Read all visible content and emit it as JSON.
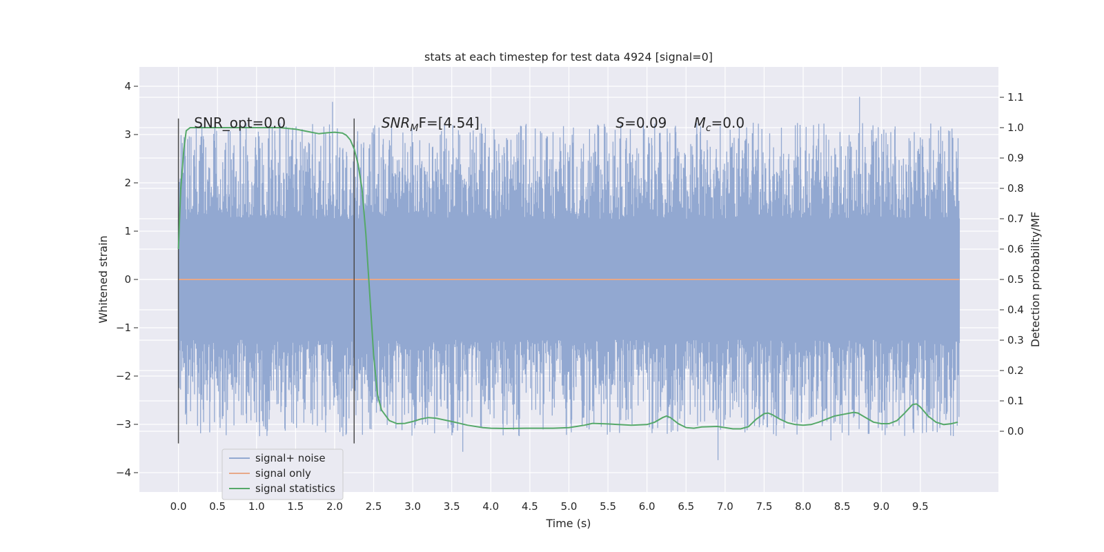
{
  "chart_data": {
    "type": "line",
    "title": "stats at each timestep for test data 4924 [signal=0]",
    "xlabel": "Time (s)",
    "ylabel_left": "Whitened strain",
    "ylabel_right": "Detection probability/MF",
    "xlim": [
      -0.5,
      10.5
    ],
    "ylim_left": [
      -4.4,
      4.4
    ],
    "ylim_right": [
      -0.2,
      1.2
    ],
    "x_ticks": [
      "0.0",
      "0.5",
      "1.0",
      "1.5",
      "2.0",
      "2.5",
      "3.0",
      "3.5",
      "4.0",
      "4.5",
      "5.0",
      "5.5",
      "6.0",
      "6.5",
      "7.0",
      "7.5",
      "8.0",
      "8.5",
      "9.0",
      "9.5"
    ],
    "y_ticks_left": [
      "−4",
      "−3",
      "−2",
      "−1",
      "0",
      "1",
      "2",
      "3",
      "4"
    ],
    "y_ticks_right": [
      "0.0",
      "0.1",
      "0.2",
      "0.3",
      "0.4",
      "0.5",
      "0.6",
      "0.7",
      "0.8",
      "0.9",
      "1.0",
      "1.1"
    ],
    "grid": true,
    "legend_position": "lower-left",
    "series": [
      {
        "name": "signal+ noise",
        "color": "#92a8d1",
        "axis": "left",
        "style": "noise",
        "x_range": [
          0,
          10
        ],
        "typical_abs": 1.25,
        "max_abs": 4.0
      },
      {
        "name": "signal only",
        "color": "#e8a888",
        "axis": "left",
        "values_constant": 0.0,
        "x_range": [
          0,
          10
        ]
      },
      {
        "name": "signal statistics",
        "color": "#55a868",
        "axis": "right",
        "x": [
          0.0,
          0.03,
          0.07,
          0.1,
          0.15,
          0.2,
          0.3,
          0.5,
          1.0,
          1.3,
          1.5,
          1.6,
          1.7,
          1.8,
          1.9,
          2.0,
          2.1,
          2.15,
          2.2,
          2.25,
          2.3,
          2.35,
          2.4,
          2.45,
          2.5,
          2.55,
          2.6,
          2.7,
          2.8,
          2.9,
          3.0,
          3.1,
          3.2,
          3.3,
          3.5,
          3.7,
          3.9,
          4.0,
          4.2,
          4.5,
          4.8,
          5.0,
          5.1,
          5.2,
          5.3,
          5.5,
          5.8,
          6.0,
          6.1,
          6.2,
          6.25,
          6.3,
          6.4,
          6.5,
          6.6,
          6.7,
          6.9,
          7.0,
          7.1,
          7.2,
          7.3,
          7.4,
          7.5,
          7.55,
          7.6,
          7.7,
          7.8,
          7.9,
          8.0,
          8.1,
          8.2,
          8.3,
          8.4,
          8.5,
          8.6,
          8.65,
          8.7,
          8.8,
          8.9,
          9.0,
          9.1,
          9.2,
          9.3,
          9.4,
          9.45,
          9.5,
          9.6,
          9.7,
          9.8,
          9.9,
          9.98
        ],
        "values": [
          0.6,
          0.8,
          0.93,
          0.99,
          1.0,
          1.0,
          1.0,
          1.0,
          1.0,
          1.0,
          0.995,
          0.99,
          0.985,
          0.98,
          0.983,
          0.985,
          0.982,
          0.975,
          0.96,
          0.93,
          0.88,
          0.8,
          0.65,
          0.45,
          0.25,
          0.12,
          0.07,
          0.035,
          0.025,
          0.026,
          0.032,
          0.04,
          0.045,
          0.043,
          0.032,
          0.02,
          0.012,
          0.01,
          0.009,
          0.01,
          0.01,
          0.012,
          0.016,
          0.02,
          0.026,
          0.024,
          0.02,
          0.022,
          0.03,
          0.045,
          0.05,
          0.045,
          0.025,
          0.012,
          0.01,
          0.014,
          0.016,
          0.012,
          0.008,
          0.008,
          0.015,
          0.04,
          0.058,
          0.06,
          0.055,
          0.04,
          0.028,
          0.022,
          0.02,
          0.022,
          0.03,
          0.04,
          0.05,
          0.055,
          0.06,
          0.062,
          0.06,
          0.045,
          0.03,
          0.025,
          0.025,
          0.035,
          0.06,
          0.088,
          0.09,
          0.08,
          0.05,
          0.03,
          0.022,
          0.025,
          0.03
        ]
      }
    ],
    "vertical_markers": [
      0.0,
      2.25
    ],
    "annotations": [
      {
        "text": "SNR_opt=0.0",
        "x": 0.2
      },
      {
        "text_italic": "SNR",
        "sub": "M",
        "text_rest": "F=[4.54]",
        "x": 2.6
      },
      {
        "text_italic": "S",
        "text_rest": "=0.09",
        "x": 5.6
      },
      {
        "text_italic": "M",
        "sub": "c",
        "text_rest": "=0.0",
        "x": 6.6
      }
    ]
  }
}
